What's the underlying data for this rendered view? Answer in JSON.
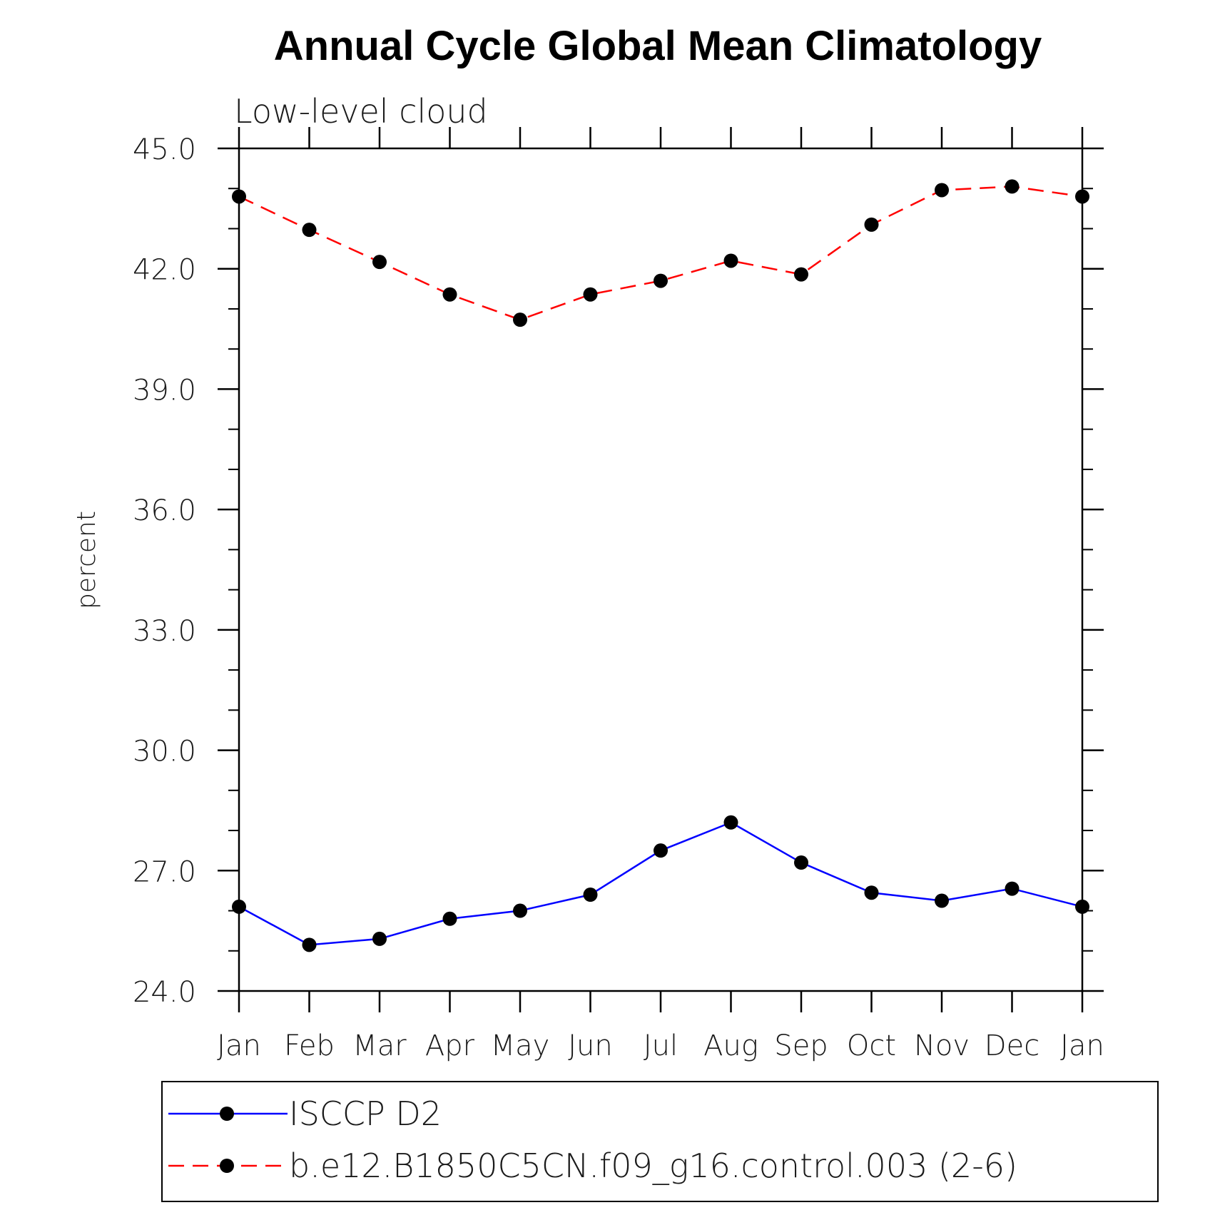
{
  "chart_data": {
    "type": "line",
    "title": "Annual Cycle Global Mean Climatology",
    "subtitle": "Low-level cloud",
    "xlabel": "",
    "ylabel": "percent",
    "categories": [
      "Jan",
      "Feb",
      "Mar",
      "Apr",
      "May",
      "Jun",
      "Jul",
      "Aug",
      "Sep",
      "Oct",
      "Nov",
      "Dec",
      "Jan"
    ],
    "ylim": [
      24.0,
      45.0
    ],
    "yticks": [
      "24.0",
      "27.0",
      "30.0",
      "33.0",
      "36.0",
      "39.0",
      "42.0",
      "45.0"
    ],
    "ytick_values": [
      24,
      27,
      30,
      33,
      36,
      39,
      42,
      45
    ],
    "yminor_step": 1,
    "grid": false,
    "legend_position": "bottom",
    "series": [
      {
        "name": "ISCCP D2",
        "color": "#0000ff",
        "line_style": "solid",
        "marker": "filled-circle",
        "values": [
          26.1,
          25.15,
          25.3,
          25.8,
          26.0,
          26.4,
          27.5,
          28.2,
          27.2,
          26.45,
          26.25,
          26.55,
          26.1
        ]
      },
      {
        "name": "b.e12.B1850C5CN.f09_g16.control.003 (2-6)",
        "color": "#ff0000",
        "line_style": "dashed",
        "marker": "filled-circle",
        "values": [
          43.8,
          42.97,
          42.17,
          41.36,
          40.73,
          41.36,
          41.7,
          42.2,
          41.86,
          43.1,
          43.96,
          44.05,
          43.8
        ]
      }
    ]
  }
}
